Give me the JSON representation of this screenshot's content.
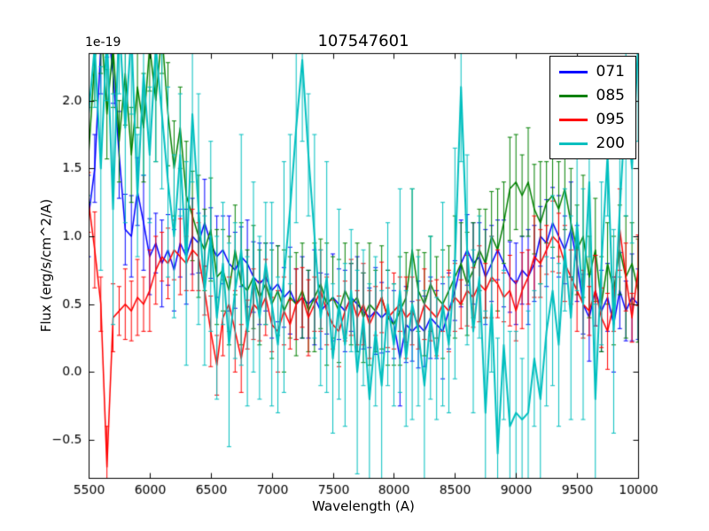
{
  "chart_data": {
    "type": "line",
    "title": "107547601",
    "xlabel": "Wavelength (A)",
    "ylabel": "Flux (erg/s/cm^2/A)",
    "offset_text": "1e-19",
    "xlim": [
      5500,
      10000
    ],
    "ylim": [
      -0.78,
      2.35
    ],
    "xticks": [
      5500,
      6000,
      6500,
      7000,
      7500,
      8000,
      8500,
      9000,
      9500,
      10000
    ],
    "yticks": [
      -0.5,
      0.0,
      0.5,
      1.0,
      1.5,
      2.0
    ],
    "grid": false,
    "error_bars": true,
    "legend_position": "upper right",
    "colors": {
      "axis": "#000000",
      "background": "#ffffff"
    },
    "x": [
      5500,
      5550,
      5600,
      5650,
      5700,
      5750,
      5800,
      5850,
      5900,
      5950,
      6000,
      6050,
      6100,
      6150,
      6200,
      6250,
      6300,
      6350,
      6400,
      6450,
      6500,
      6550,
      6600,
      6650,
      6700,
      6750,
      6800,
      6850,
      6900,
      6950,
      7000,
      7050,
      7100,
      7150,
      7200,
      7250,
      7300,
      7350,
      7400,
      7450,
      7500,
      7550,
      7600,
      7650,
      7700,
      7750,
      7800,
      7850,
      7900,
      7950,
      8000,
      8050,
      8100,
      8150,
      8200,
      8250,
      8300,
      8350,
      8400,
      8450,
      8500,
      8550,
      8600,
      8650,
      8700,
      8750,
      8800,
      8850,
      8900,
      8950,
      9000,
      9050,
      9100,
      9150,
      9200,
      9250,
      9300,
      9350,
      9400,
      9450,
      9500,
      9550,
      9600,
      9650,
      9700,
      9750,
      9800,
      9850,
      9900,
      9950,
      10000
    ],
    "series": [
      {
        "name": "071",
        "color": "#0000ff",
        "linewidth": 1.5,
        "values": [
          1.15,
          1.5,
          2.4,
          2.6,
          2.2,
          1.6,
          1.05,
          1.0,
          1.33,
          1.1,
          0.85,
          0.95,
          0.8,
          0.9,
          0.75,
          0.95,
          0.85,
          1.0,
          0.95,
          1.1,
          0.95,
          0.85,
          0.9,
          0.8,
          0.75,
          0.85,
          0.8,
          0.7,
          0.65,
          0.7,
          0.6,
          0.65,
          0.55,
          0.6,
          0.5,
          0.55,
          0.5,
          0.55,
          0.45,
          0.5,
          0.55,
          0.5,
          0.45,
          0.55,
          0.5,
          0.45,
          0.4,
          0.45,
          0.4,
          0.45,
          0.35,
          0.1,
          0.35,
          0.3,
          0.35,
          0.3,
          0.4,
          0.35,
          0.3,
          0.45,
          0.6,
          0.8,
          0.9,
          0.8,
          0.85,
          0.7,
          0.8,
          0.9,
          0.8,
          0.7,
          0.65,
          0.75,
          0.7,
          0.8,
          1.0,
          0.95,
          1.1,
          1.0,
          0.9,
          1.05,
          0.8,
          0.5,
          0.4,
          0.6,
          0.45,
          0.55,
          0.35,
          0.6,
          0.45,
          0.55,
          0.5
        ],
        "err_cycle": [
          0.3,
          0.25,
          0.35,
          0.28,
          0.22,
          0.32,
          0.26
        ]
      },
      {
        "name": "085",
        "color": "#008000",
        "linewidth": 1.5,
        "values": [
          1.6,
          2.3,
          2.6,
          1.9,
          2.4,
          1.7,
          2.2,
          1.6,
          2.1,
          1.8,
          2.4,
          2.0,
          2.5,
          1.9,
          1.5,
          1.8,
          1.3,
          1.15,
          1.0,
          0.9,
          1.05,
          0.7,
          0.75,
          0.6,
          0.9,
          0.65,
          0.6,
          0.7,
          0.55,
          0.65,
          0.5,
          0.6,
          0.45,
          0.55,
          0.5,
          0.6,
          0.45,
          0.55,
          0.65,
          0.5,
          0.55,
          0.45,
          0.6,
          0.5,
          0.55,
          0.4,
          0.5,
          0.45,
          0.55,
          0.4,
          0.35,
          0.45,
          0.55,
          0.9,
          0.6,
          0.5,
          0.65,
          0.55,
          0.5,
          0.6,
          0.7,
          0.8,
          0.65,
          0.75,
          0.9,
          0.8,
          1.0,
          0.9,
          1.1,
          1.35,
          1.4,
          1.3,
          1.4,
          1.2,
          1.1,
          1.25,
          1.3,
          1.2,
          1.35,
          1.1,
          0.9,
          1.0,
          0.7,
          0.9,
          0.5,
          0.8,
          0.6,
          0.9,
          0.7,
          0.8,
          0.6
        ],
        "err_cycle": [
          0.35,
          0.3,
          0.4,
          0.33,
          0.45,
          0.3,
          0.38
        ]
      },
      {
        "name": "095",
        "color": "#ff0000",
        "linewidth": 1.5,
        "values": [
          1.25,
          0.9,
          0.5,
          -0.7,
          0.4,
          0.45,
          0.5,
          0.45,
          0.55,
          0.5,
          0.6,
          0.75,
          0.85,
          0.8,
          0.9,
          0.85,
          0.8,
          0.9,
          0.85,
          0.6,
          0.3,
          0.05,
          0.4,
          0.5,
          0.3,
          0.1,
          0.35,
          0.5,
          0.45,
          0.55,
          0.35,
          0.3,
          0.45,
          0.35,
          0.5,
          0.55,
          0.4,
          0.5,
          0.6,
          0.45,
          0.35,
          0.3,
          0.45,
          0.55,
          0.4,
          0.5,
          0.35,
          0.45,
          0.55,
          0.4,
          0.45,
          0.5,
          0.4,
          0.45,
          0.35,
          0.5,
          0.45,
          0.4,
          0.5,
          0.45,
          0.55,
          0.5,
          0.6,
          0.55,
          0.65,
          0.6,
          0.7,
          0.65,
          0.55,
          0.6,
          0.45,
          0.6,
          0.7,
          0.85,
          0.8,
          0.9,
          1.0,
          0.95,
          0.8,
          0.7,
          0.6,
          0.5,
          0.45,
          0.6,
          0.4,
          0.3,
          0.5,
          1.05,
          0.7,
          0.4,
          0.75
        ],
        "err_cycle": [
          0.22,
          0.28,
          0.2,
          0.3,
          0.25,
          0.18,
          0.26
        ]
      },
      {
        "name": "200",
        "color": "#00bfbf",
        "linewidth": 2,
        "values": [
          1.9,
          2.4,
          1.5,
          2.5,
          1.2,
          2.6,
          1.8,
          2.5,
          1.3,
          2.2,
          1.6,
          2.4,
          1.9,
          1.4,
          1.0,
          1.6,
          0.8,
          1.9,
          1.2,
          0.6,
          1.0,
          0.4,
          0.8,
          0.2,
          0.6,
          0.9,
          0.3,
          0.7,
          0.4,
          0.8,
          0.5,
          0.2,
          0.7,
          1.2,
          1.8,
          2.3,
          1.6,
          1.0,
          0.4,
          0.7,
          0.1,
          0.5,
          0.2,
          0.6,
          0.0,
          0.4,
          -0.2,
          0.3,
          -0.1,
          0.5,
          0.2,
          0.6,
          0.1,
          0.5,
          0.3,
          -0.1,
          0.4,
          0.1,
          0.5,
          0.2,
          0.8,
          2.1,
          0.9,
          0.3,
          0.7,
          -0.3,
          0.5,
          -0.6,
          0.2,
          -0.4,
          -0.3,
          -0.35,
          -0.3,
          0.1,
          -0.2,
          0.3,
          0.6,
          0.2,
          0.9,
          0.4,
          1.1,
          0.5,
          1.4,
          -0.2,
          0.8,
          1.6,
          0.3,
          1.2,
          2.0,
          1.5,
          2.4
        ],
        "err_cycle": [
          0.6,
          0.45,
          0.75,
          0.5,
          0.85,
          0.55,
          0.7
        ]
      }
    ]
  }
}
